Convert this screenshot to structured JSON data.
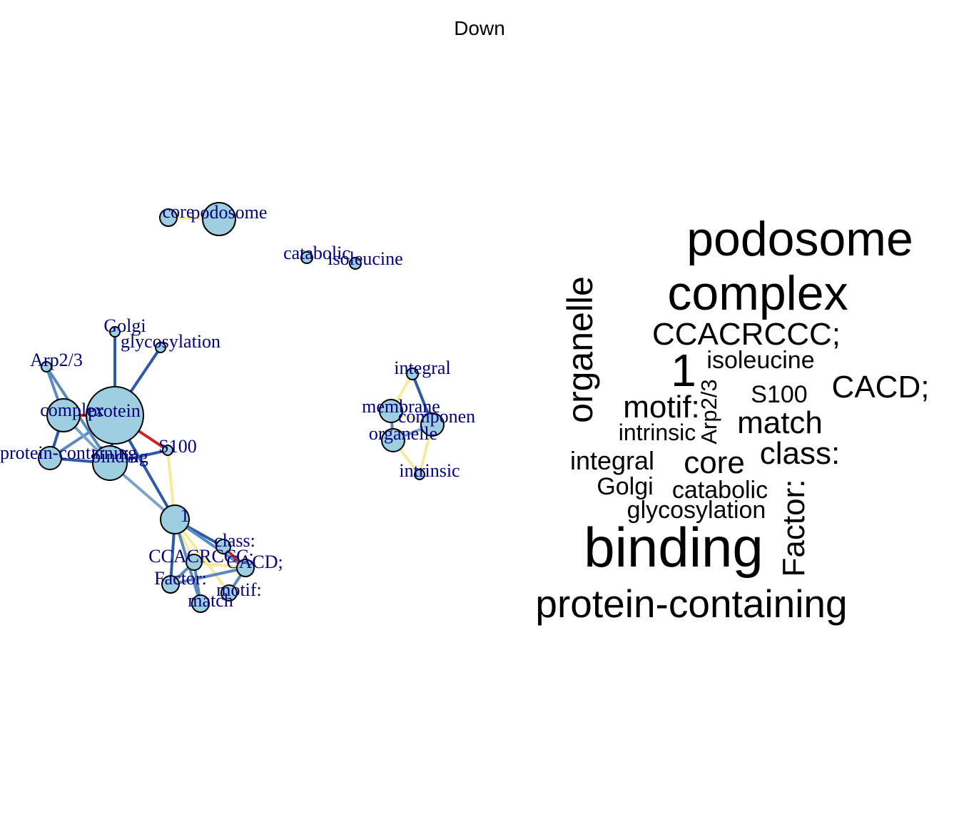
{
  "title": "Down",
  "colors": {
    "node_fill": "#9ecfe1",
    "label": "#000080",
    "edge_strong": "#2b5ba8",
    "edge_medium": "#5a8ac0",
    "edge_light": "#7aa3cc",
    "edge_yellow": "#f7eb9a",
    "edge_red": "#cc2222"
  },
  "network": {
    "nodes": [
      {
        "id": "protein",
        "label": "protein"
      },
      {
        "id": "complex",
        "label": "complex"
      },
      {
        "id": "binding",
        "label": "binding"
      },
      {
        "id": "protein-containing",
        "label": "protein-containing"
      },
      {
        "id": "Arp2/3",
        "label": "Arp2/3"
      },
      {
        "id": "Golgi",
        "label": "Golgi"
      },
      {
        "id": "glycosylation",
        "label": "glycosylation"
      },
      {
        "id": "S100",
        "label": "S100"
      },
      {
        "id": "1",
        "label": "1"
      },
      {
        "id": "class:",
        "label": "class:"
      },
      {
        "id": "CCACRCCC;",
        "label": "CCACRCCC;"
      },
      {
        "id": "CACD;",
        "label": "CACD;"
      },
      {
        "id": "Factor:",
        "label": "Factor:"
      },
      {
        "id": "match",
        "label": "match"
      },
      {
        "id": "motif:",
        "label": "motif:"
      },
      {
        "id": "core",
        "label": "core"
      },
      {
        "id": "podosome",
        "label": "podosome"
      },
      {
        "id": "catabolic",
        "label": "catabolic"
      },
      {
        "id": "isoleucine",
        "label": "isoleucine"
      },
      {
        "id": "integral",
        "label": "integral"
      },
      {
        "id": "membrane",
        "label": "membrane"
      },
      {
        "id": "component",
        "label": "componen"
      },
      {
        "id": "organelle",
        "label": "organelle"
      },
      {
        "id": "intrinsic",
        "label": "intrinsic"
      }
    ],
    "edges": [
      {
        "source": "protein",
        "target": "complex",
        "weight": "red"
      },
      {
        "source": "protein",
        "target": "binding",
        "weight": "strong"
      },
      {
        "source": "protein",
        "target": "protein-containing",
        "weight": "medium"
      },
      {
        "source": "protein",
        "target": "Golgi",
        "weight": "strong"
      },
      {
        "source": "protein",
        "target": "glycosylation",
        "weight": "strong"
      },
      {
        "source": "protein",
        "target": "S100",
        "weight": "red"
      },
      {
        "source": "protein",
        "target": "1",
        "weight": "strong"
      },
      {
        "source": "complex",
        "target": "binding",
        "weight": "light"
      },
      {
        "source": "complex",
        "target": "protein-containing",
        "weight": "strong"
      },
      {
        "source": "complex",
        "target": "Arp2/3",
        "weight": "medium"
      },
      {
        "source": "binding",
        "target": "protein-containing",
        "weight": "strong"
      },
      {
        "source": "binding",
        "target": "S100",
        "weight": "strong"
      },
      {
        "source": "binding",
        "target": "Arp2/3",
        "weight": "medium"
      },
      {
        "source": "binding",
        "target": "1",
        "weight": "light"
      },
      {
        "source": "S100",
        "target": "1",
        "weight": "yellow"
      },
      {
        "source": "1",
        "target": "class:",
        "weight": "strong"
      },
      {
        "source": "1",
        "target": "CCACRCCC;",
        "weight": "yellow"
      },
      {
        "source": "1",
        "target": "CACD;",
        "weight": "medium"
      },
      {
        "source": "1",
        "target": "Factor:",
        "weight": "strong"
      },
      {
        "source": "1",
        "target": "match",
        "weight": "medium"
      },
      {
        "source": "1",
        "target": "motif:",
        "weight": "yellow"
      },
      {
        "source": "class:",
        "target": "CACD;",
        "weight": "red"
      },
      {
        "source": "CCACRCCC;",
        "target": "CACD;",
        "weight": "yellow"
      },
      {
        "source": "CCACRCCC;",
        "target": "Factor:",
        "weight": "medium"
      },
      {
        "source": "Factor:",
        "target": "CACD;",
        "weight": "medium"
      },
      {
        "source": "match",
        "target": "CCACRCCC;",
        "weight": "medium"
      },
      {
        "source": "motif:",
        "target": "CACD;",
        "weight": "medium"
      },
      {
        "source": "core",
        "target": "podosome",
        "weight": "yellow"
      },
      {
        "source": "integral",
        "target": "membrane",
        "weight": "yellow"
      },
      {
        "source": "integral",
        "target": "component",
        "weight": "strong"
      },
      {
        "source": "membrane",
        "target": "component",
        "weight": "yellow"
      },
      {
        "source": "membrane",
        "target": "organelle",
        "weight": "medium"
      },
      {
        "source": "component",
        "target": "organelle",
        "weight": "light"
      },
      {
        "source": "organelle",
        "target": "intrinsic",
        "weight": "yellow"
      },
      {
        "source": "component",
        "target": "intrinsic",
        "weight": "yellow"
      }
    ]
  },
  "wordcloud": [
    {
      "word": "podosome",
      "rotated": false
    },
    {
      "word": "complex",
      "rotated": false
    },
    {
      "word": "organelle",
      "rotated": true
    },
    {
      "word": "CCACRCCC;",
      "rotated": false
    },
    {
      "word": "1",
      "rotated": false
    },
    {
      "word": "isoleucine",
      "rotated": false
    },
    {
      "word": "Arp2/3",
      "rotated": true
    },
    {
      "word": "S100",
      "rotated": false
    },
    {
      "word": "CACD;",
      "rotated": false
    },
    {
      "word": "motif:",
      "rotated": false
    },
    {
      "word": "match",
      "rotated": false
    },
    {
      "word": "intrinsic",
      "rotated": false
    },
    {
      "word": "class:",
      "rotated": false
    },
    {
      "word": "integral",
      "rotated": false
    },
    {
      "word": "core",
      "rotated": false
    },
    {
      "word": "Golgi",
      "rotated": false
    },
    {
      "word": "catabolic",
      "rotated": false
    },
    {
      "word": "Factor:",
      "rotated": true
    },
    {
      "word": "glycosylation",
      "rotated": false
    },
    {
      "word": "binding",
      "rotated": false
    },
    {
      "word": "protein-containing",
      "rotated": false
    }
  ]
}
